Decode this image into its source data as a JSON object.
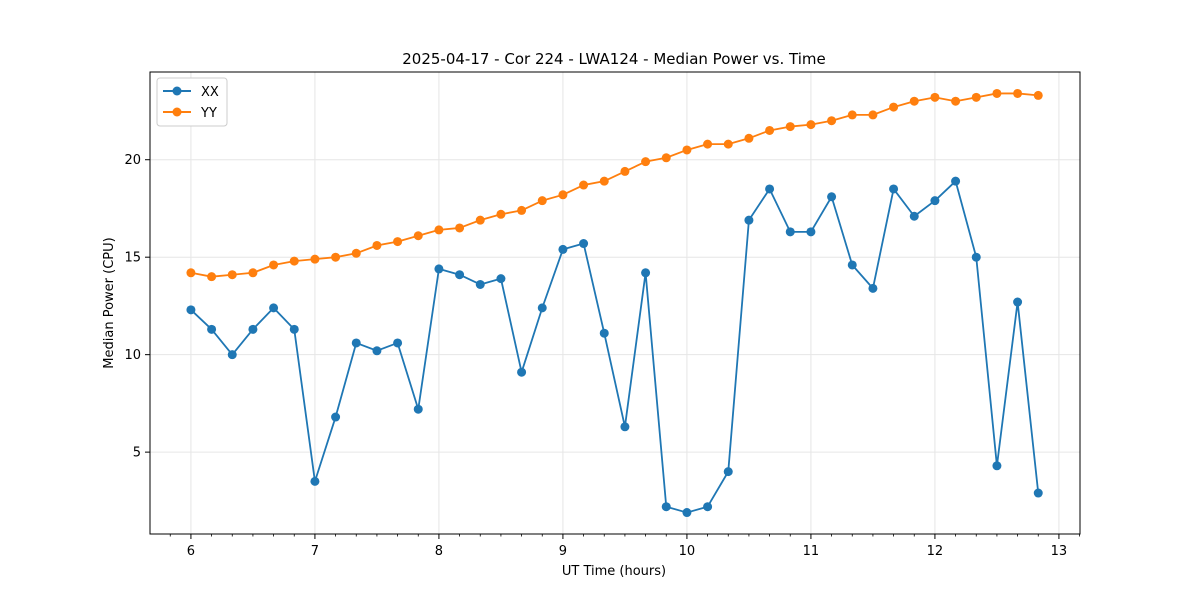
{
  "chart_data": {
    "type": "line",
    "title": "2025-04-17 - Cor 224 - LWA124 - Median Power vs. Time",
    "xlabel": "UT Time (hours)",
    "ylabel": "Median Power (CPU)",
    "xlim": [
      5.67,
      13.17
    ],
    "ylim": [
      0.8,
      24.5
    ],
    "xticks": [
      6,
      7,
      8,
      9,
      10,
      11,
      12,
      13
    ],
    "xtick_labels": [
      "6",
      "7",
      "8",
      "9",
      "10",
      "11",
      "12",
      "13"
    ],
    "yticks": [
      5,
      10,
      15,
      20
    ],
    "ytick_labels": [
      "5",
      "10",
      "15",
      "20"
    ],
    "grid": true,
    "legend_position": "upper-left",
    "x": [
      6.0,
      6.1667,
      6.3333,
      6.5,
      6.6667,
      6.8333,
      7.0,
      7.1667,
      7.3333,
      7.5,
      7.6667,
      7.8333,
      8.0,
      8.1667,
      8.3333,
      8.5,
      8.6667,
      8.8333,
      9.0,
      9.1667,
      9.3333,
      9.5,
      9.6667,
      9.8333,
      10.0,
      10.1667,
      10.3333,
      10.5,
      10.6667,
      10.8333,
      11.0,
      11.1667,
      11.3333,
      11.5,
      11.6667,
      11.8333,
      12.0,
      12.1667,
      12.3333,
      12.5,
      12.6667,
      12.8333
    ],
    "series": [
      {
        "name": "XX",
        "color": "#1f77b4",
        "values": [
          12.3,
          11.3,
          10.0,
          11.3,
          12.4,
          11.3,
          3.5,
          6.8,
          10.6,
          10.2,
          10.6,
          7.2,
          14.4,
          14.1,
          13.6,
          13.9,
          9.1,
          12.4,
          15.4,
          15.7,
          11.1,
          6.3,
          14.2,
          2.2,
          1.9,
          2.2,
          4.0,
          16.9,
          18.5,
          16.3,
          16.3,
          18.1,
          14.6,
          13.4,
          18.5,
          17.1,
          17.9,
          18.9,
          15.0,
          4.3,
          12.7,
          2.9
        ]
      },
      {
        "name": "YY",
        "color": "#ff7f0e",
        "values": [
          14.2,
          14.0,
          14.1,
          14.2,
          14.6,
          14.8,
          14.9,
          15.0,
          15.2,
          15.6,
          15.8,
          16.1,
          16.4,
          16.5,
          16.9,
          17.2,
          17.4,
          17.9,
          18.2,
          18.7,
          18.9,
          19.4,
          19.9,
          20.1,
          20.5,
          20.8,
          20.8,
          21.1,
          21.5,
          21.7,
          21.8,
          22.0,
          22.3,
          22.3,
          22.7,
          23.0,
          23.2,
          23.0,
          23.2,
          23.4,
          23.4,
          23.3
        ]
      }
    ]
  }
}
